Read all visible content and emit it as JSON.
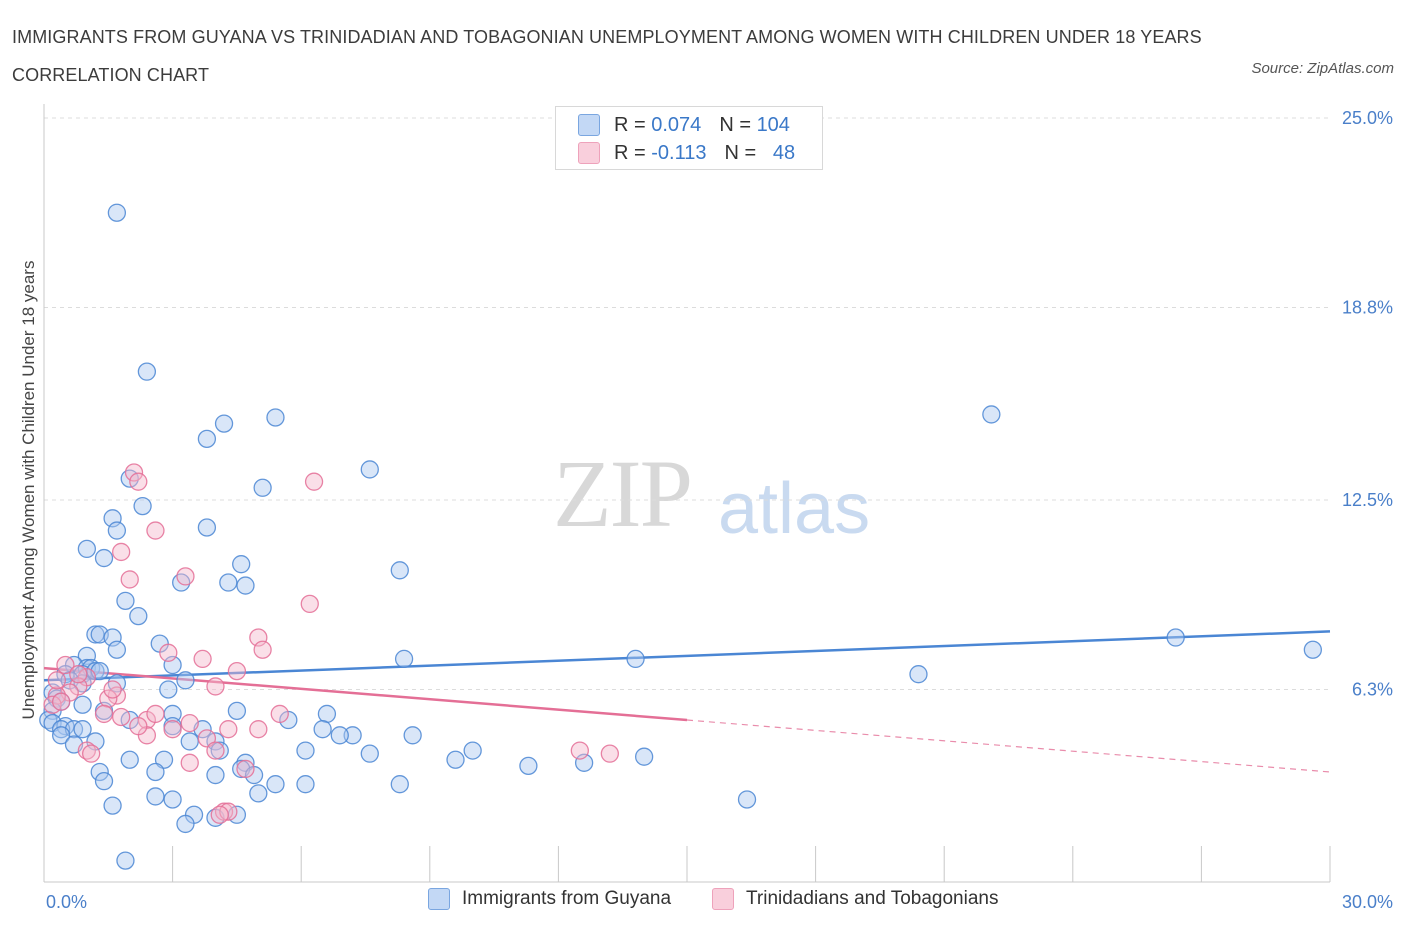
{
  "title": "IMMIGRANTS FROM GUYANA VS TRINIDADIAN AND TOBAGONIAN UNEMPLOYMENT AMONG WOMEN WITH CHILDREN UNDER 18 YEARS CORRELATION CHART",
  "source": "Source: ZipAtlas.com",
  "watermark": {
    "zip": "ZIP",
    "atlas": "atlas"
  },
  "legend": {
    "rows": [
      {
        "r_label": "R =",
        "r_value": "0.074",
        "n_label": "N =",
        "n_value": "104",
        "color": "#aac8f0"
      },
      {
        "r_label": "R =",
        "r_value": "-0.113",
        "n_label": "N =",
        "n_value": "48",
        "color": "#f5b8cb"
      }
    ]
  },
  "bottom_legend": [
    {
      "label": "Immigrants from Guyana",
      "color": "#aac8f0"
    },
    {
      "label": "Trinidadians and Tobagonians",
      "color": "#f5b8cb"
    }
  ],
  "chart_data": {
    "type": "scatter",
    "title": "IMMIGRANTS FROM GUYANA VS TRINIDADIAN AND TOBAGONIAN UNEMPLOYMENT AMONG WOMEN WITH CHILDREN UNDER 18 YEARS CORRELATION CHART",
    "xlabel": "",
    "ylabel": "Unemployment Among Women with Children Under 18 years",
    "xlim": [
      0,
      30
    ],
    "ylim": [
      0,
      25
    ],
    "x_tick_labels": [
      "0.0%",
      "30.0%"
    ],
    "y_ticks": [
      6.3,
      12.5,
      18.8,
      25.0
    ],
    "y_tick_labels": [
      "6.3%",
      "12.5%",
      "18.8%",
      "25.0%"
    ],
    "grid": true,
    "legend_position": "top-center",
    "series": [
      {
        "name": "Immigrants from Guyana",
        "color": "#4a86d4",
        "fill": "#aac8f0",
        "trend": {
          "x": [
            0,
            30
          ],
          "y": [
            6.6,
            8.2
          ],
          "dashed_from": null
        },
        "points": [
          [
            1.7,
            21.9
          ],
          [
            2.4,
            16.7
          ],
          [
            4.2,
            15.0
          ],
          [
            5.4,
            15.2
          ],
          [
            3.8,
            14.5
          ],
          [
            7.6,
            13.5
          ],
          [
            2.0,
            13.2
          ],
          [
            5.1,
            12.9
          ],
          [
            2.3,
            12.3
          ],
          [
            1.6,
            11.9
          ],
          [
            3.8,
            11.6
          ],
          [
            1.7,
            11.5
          ],
          [
            1.0,
            10.9
          ],
          [
            1.4,
            10.6
          ],
          [
            4.6,
            10.4
          ],
          [
            8.3,
            10.2
          ],
          [
            3.2,
            9.8
          ],
          [
            4.3,
            9.8
          ],
          [
            4.7,
            9.7
          ],
          [
            1.9,
            9.2
          ],
          [
            2.2,
            8.7
          ],
          [
            1.2,
            8.1
          ],
          [
            1.3,
            8.1
          ],
          [
            1.6,
            8.0
          ],
          [
            2.7,
            7.8
          ],
          [
            1.7,
            7.6
          ],
          [
            1.0,
            7.4
          ],
          [
            0.7,
            7.1
          ],
          [
            1.0,
            7.0
          ],
          [
            1.1,
            7.0
          ],
          [
            3.0,
            7.1
          ],
          [
            8.4,
            7.3
          ],
          [
            13.8,
            7.3
          ],
          [
            0.5,
            6.8
          ],
          [
            0.9,
            6.8
          ],
          [
            1.2,
            6.9
          ],
          [
            1.3,
            6.9
          ],
          [
            0.6,
            6.6
          ],
          [
            0.9,
            6.5
          ],
          [
            1.7,
            6.5
          ],
          [
            3.3,
            6.6
          ],
          [
            2.9,
            6.3
          ],
          [
            0.2,
            6.2
          ],
          [
            0.3,
            6.0
          ],
          [
            0.4,
            5.9
          ],
          [
            0.2,
            5.6
          ],
          [
            0.9,
            5.8
          ],
          [
            1.4,
            5.6
          ],
          [
            2.0,
            5.3
          ],
          [
            3.0,
            5.5
          ],
          [
            4.5,
            5.6
          ],
          [
            5.7,
            5.3
          ],
          [
            6.6,
            5.5
          ],
          [
            0.1,
            5.3
          ],
          [
            0.2,
            5.2
          ],
          [
            0.5,
            5.1
          ],
          [
            0.4,
            5.0
          ],
          [
            0.7,
            5.0
          ],
          [
            0.9,
            5.0
          ],
          [
            3.0,
            5.1
          ],
          [
            3.7,
            5.0
          ],
          [
            6.5,
            5.0
          ],
          [
            0.4,
            4.8
          ],
          [
            0.7,
            4.5
          ],
          [
            1.2,
            4.6
          ],
          [
            3.4,
            4.6
          ],
          [
            4.0,
            4.6
          ],
          [
            7.2,
            4.8
          ],
          [
            6.9,
            4.8
          ],
          [
            8.6,
            4.8
          ],
          [
            4.1,
            4.3
          ],
          [
            6.1,
            4.3
          ],
          [
            7.6,
            4.2
          ],
          [
            2.0,
            4.0
          ],
          [
            2.8,
            4.0
          ],
          [
            4.7,
            3.9
          ],
          [
            1.3,
            3.6
          ],
          [
            2.6,
            3.6
          ],
          [
            4.0,
            3.5
          ],
          [
            4.6,
            3.7
          ],
          [
            4.9,
            3.5
          ],
          [
            1.4,
            3.3
          ],
          [
            5.4,
            3.2
          ],
          [
            6.1,
            3.2
          ],
          [
            8.3,
            3.2
          ],
          [
            2.6,
            2.8
          ],
          [
            3.0,
            2.7
          ],
          [
            5.0,
            2.9
          ],
          [
            1.6,
            2.5
          ],
          [
            4.0,
            2.1
          ],
          [
            3.5,
            2.2
          ],
          [
            4.5,
            2.2
          ],
          [
            3.3,
            1.9
          ],
          [
            1.9,
            0.7
          ],
          [
            29.6,
            7.6
          ],
          [
            26.4,
            8.0
          ],
          [
            20.4,
            6.8
          ],
          [
            22.1,
            15.3
          ],
          [
            16.4,
            2.7
          ],
          [
            14.0,
            4.1
          ],
          [
            12.6,
            3.9
          ],
          [
            10.0,
            4.3
          ],
          [
            9.6,
            4.0
          ],
          [
            11.3,
            3.8
          ]
        ]
      },
      {
        "name": "Trinidadians and Tobagonians",
        "color": "#e46f96",
        "fill": "#f5b8cb",
        "trend": {
          "x": [
            0,
            30
          ],
          "y": [
            7.0,
            3.6
          ],
          "dashed_from": 15.0
        },
        "points": [
          [
            2.1,
            13.4
          ],
          [
            6.3,
            13.1
          ],
          [
            2.2,
            13.1
          ],
          [
            2.6,
            11.5
          ],
          [
            1.8,
            10.8
          ],
          [
            3.3,
            10.0
          ],
          [
            2.0,
            9.9
          ],
          [
            6.2,
            9.1
          ],
          [
            5.0,
            8.0
          ],
          [
            5.1,
            7.6
          ],
          [
            2.9,
            7.5
          ],
          [
            3.7,
            7.3
          ],
          [
            0.5,
            7.1
          ],
          [
            1.0,
            6.7
          ],
          [
            4.5,
            6.9
          ],
          [
            4.0,
            6.4
          ],
          [
            0.8,
            6.4
          ],
          [
            0.6,
            6.2
          ],
          [
            0.3,
            6.1
          ],
          [
            0.2,
            5.8
          ],
          [
            1.7,
            6.1
          ],
          [
            1.5,
            6.0
          ],
          [
            1.4,
            5.5
          ],
          [
            0.4,
            5.9
          ],
          [
            1.8,
            5.4
          ],
          [
            2.4,
            5.3
          ],
          [
            2.6,
            5.5
          ],
          [
            3.4,
            5.2
          ],
          [
            5.5,
            5.5
          ],
          [
            3.0,
            5.0
          ],
          [
            4.3,
            5.0
          ],
          [
            5.0,
            5.0
          ],
          [
            2.4,
            4.8
          ],
          [
            3.8,
            4.7
          ],
          [
            1.0,
            4.3
          ],
          [
            1.1,
            4.2
          ],
          [
            4.0,
            4.3
          ],
          [
            3.4,
            3.9
          ],
          [
            4.7,
            3.7
          ],
          [
            4.2,
            2.3
          ],
          [
            4.3,
            2.3
          ],
          [
            12.5,
            4.3
          ],
          [
            13.2,
            4.2
          ],
          [
            0.3,
            6.6
          ],
          [
            0.8,
            6.8
          ],
          [
            1.6,
            6.3
          ],
          [
            2.2,
            5.1
          ],
          [
            4.1,
            2.2
          ]
        ]
      }
    ]
  }
}
